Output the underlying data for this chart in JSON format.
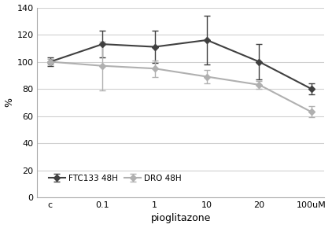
{
  "categories": [
    "c",
    "0.1",
    "1",
    "10",
    "20",
    "100uM"
  ],
  "ftc133_values": [
    100,
    113,
    111,
    116,
    100,
    80
  ],
  "ftc133_errors": [
    3,
    10,
    12,
    18,
    13,
    4
  ],
  "dro_values": [
    100,
    97,
    95,
    89,
    83,
    63
  ],
  "dro_errors": [
    2,
    18,
    6,
    5,
    3,
    4
  ],
  "ftc133_color": "#404040",
  "dro_color": "#b0b0b0",
  "ftc133_label": "FTC133 48H",
  "dro_label": "DRO 48H",
  "xlabel": "pioglitazone",
  "ylabel": "%",
  "ylim": [
    0,
    140
  ],
  "yticks": [
    0,
    20,
    40,
    60,
    80,
    100,
    120,
    140
  ],
  "background_color": "#ffffff",
  "grid_color": "#d0d0d0",
  "marker": "D",
  "linewidth": 1.5,
  "markersize": 4
}
